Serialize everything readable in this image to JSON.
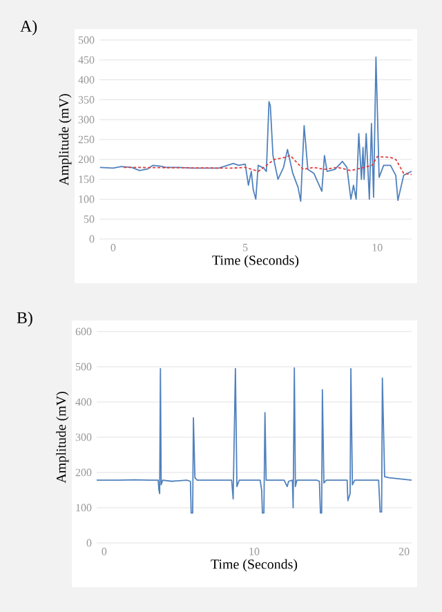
{
  "chart_data": [
    {
      "type": "line",
      "title": "A)",
      "xlabel": "Time (Seconds)",
      "ylabel": "Amplitude (mV)",
      "xlim": [
        -0.52,
        11.3
      ],
      "xticks": [
        0,
        5,
        10
      ],
      "ylim": [
        0,
        500
      ],
      "yticks": [
        0,
        50,
        100,
        150,
        200,
        250,
        300,
        350,
        400,
        450,
        500
      ],
      "grid": "y",
      "marker": "none",
      "series": [
        {
          "color": "#4f81bd",
          "line_style": "solid",
          "x": [
            -0.5,
            0,
            0.3,
            0.7,
            1,
            1.3,
            1.5,
            1.8,
            2,
            2.5,
            3,
            4,
            4.55,
            4.75,
            5.0,
            5.12,
            5.23,
            5.3,
            5.4,
            5.49,
            5.7,
            5.8,
            5.9,
            5.95,
            6.05,
            6.24,
            6.45,
            6.6,
            6.8,
            7.0,
            7.1,
            7.23,
            7.37,
            7.6,
            7.9,
            8.0,
            8.1,
            8.4,
            8.68,
            8.85,
            9.0,
            9.1,
            9.2,
            9.3,
            9.4,
            9.46,
            9.5,
            9.58,
            9.7,
            9.78,
            9.86,
            9.95,
            10.07,
            10.24,
            10.5,
            10.7,
            10.78,
            11.0,
            11.3
          ],
          "values": [
            180,
            178,
            182,
            180,
            172,
            176,
            185,
            183,
            180,
            180,
            178,
            178,
            190,
            185,
            188,
            135,
            170,
            125,
            100,
            185,
            178,
            170,
            345,
            335,
            210,
            150,
            180,
            225,
            165,
            130,
            95,
            285,
            175,
            165,
            120,
            210,
            170,
            175,
            195,
            180,
            100,
            135,
            100,
            265,
            150,
            230,
            150,
            265,
            100,
            290,
            105,
            457,
            155,
            185,
            185,
            160,
            97,
            160,
            170
          ]
        },
        {
          "color": "#e03c3c",
          "line_style": "dashed",
          "x": [
            0.4,
            4.5,
            5.0,
            5.5,
            5.8,
            6.1,
            6.5,
            6.7,
            7.2,
            7.6,
            8.0,
            8.5,
            9.0,
            9.5,
            9.8,
            10.0,
            10.5,
            10.7,
            11.0,
            11.3
          ],
          "values": [
            180,
            178,
            180,
            170,
            185,
            200,
            205,
            210,
            175,
            180,
            175,
            180,
            172,
            180,
            185,
            207,
            205,
            200,
            165,
            162
          ]
        }
      ]
    },
    {
      "type": "line",
      "title": "B)",
      "xlabel": "Time (Seconds)",
      "ylabel": "Amplitude (mV)",
      "xlim": [
        -0.5,
        20.5
      ],
      "xticks": [
        0,
        10,
        20
      ],
      "ylim": [
        0,
        600
      ],
      "yticks": [
        0,
        100,
        200,
        300,
        400,
        500,
        600
      ],
      "grid": "y",
      "marker": "none",
      "series": [
        {
          "color": "#4f81bd",
          "line_style": "solid",
          "x": [
            -0.5,
            1,
            2,
            3,
            3.6,
            3.65,
            3.7,
            3.75,
            3.8,
            3.9,
            4.5,
            5.5,
            5.75,
            5.8,
            5.9,
            5.95,
            6.05,
            6.2,
            8.5,
            8.6,
            8.75,
            8.85,
            9,
            10.4,
            10.5,
            10.55,
            10.65,
            10.72,
            10.8,
            12.0,
            12.2,
            12.3,
            12.55,
            12.6,
            12.68,
            12.75,
            12.85,
            14.2,
            14.35,
            14.42,
            14.5,
            14.55,
            14.65,
            14.8,
            16.2,
            16.25,
            16.4,
            16.45,
            16.55,
            16.7,
            18.3,
            18.4,
            18.5,
            18.55,
            18.7,
            19,
            20.5
          ],
          "values": [
            178,
            178,
            179,
            178,
            178,
            150,
            140,
            495,
            165,
            178,
            175,
            178,
            175,
            85,
            85,
            355,
            185,
            178,
            178,
            125,
            495,
            160,
            178,
            178,
            150,
            85,
            85,
            370,
            178,
            178,
            160,
            175,
            178,
            100,
            497,
            160,
            178,
            178,
            175,
            85,
            85,
            435,
            170,
            178,
            178,
            120,
            140,
            495,
            165,
            178,
            178,
            88,
            88,
            468,
            188,
            185,
            178
          ]
        }
      ]
    }
  ]
}
